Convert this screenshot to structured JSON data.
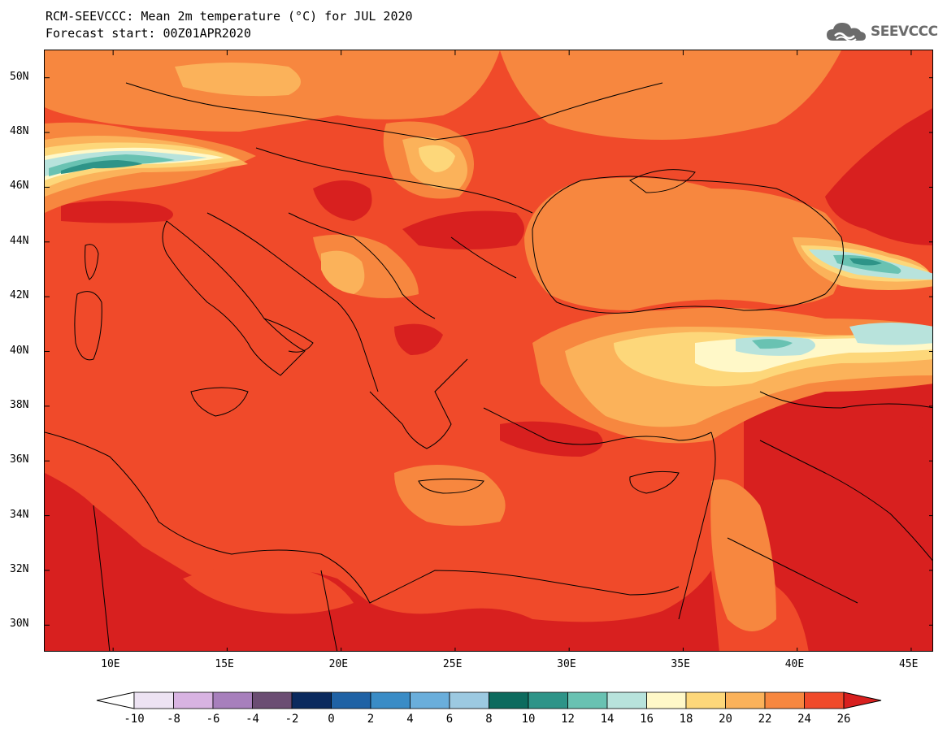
{
  "header": {
    "title": "RCM-SEEVCCC: Mean 2m temperature (°C) for JUL 2020",
    "subtitle": "Forecast start: 00Z01APR2020"
  },
  "logo": {
    "text": "SEEVCCC",
    "icon": "cloud-icon",
    "color": "#6b6b6b"
  },
  "map": {
    "lat_range": [
      29,
      51
    ],
    "lon_range": [
      7,
      46
    ],
    "lat_ticks": [
      "50N",
      "48N",
      "46N",
      "44N",
      "42N",
      "40N",
      "38N",
      "36N",
      "34N",
      "32N",
      "30N"
    ],
    "lon_ticks": [
      "10E",
      "15E",
      "20E",
      "25E",
      "30E",
      "35E",
      "40E",
      "45E"
    ]
  },
  "colorbar": {
    "labels": [
      "-10",
      "-8",
      "-6",
      "-4",
      "-2",
      "0",
      "2",
      "4",
      "6",
      "8",
      "10",
      "12",
      "14",
      "16",
      "18",
      "20",
      "22",
      "24",
      "26"
    ],
    "colors": [
      "#ffffff",
      "#ede3f3",
      "#d8b3e2",
      "#a77fbc",
      "#6b4d73",
      "#0b2a5e",
      "#1f62a5",
      "#3a8cc6",
      "#6aaedb",
      "#9cc9e1",
      "#0d6b5e",
      "#2e9488",
      "#69c2b2",
      "#b8e3dc",
      "#fff8c8",
      "#fdd77a",
      "#fbb25a",
      "#f7873f",
      "#f04a2a",
      "#d8201f"
    ],
    "palette": {
      "c26plus": "#d8201f",
      "c24": "#f04a2a",
      "c22": "#f7873f",
      "c20": "#fbb25a",
      "c18": "#fdd77a",
      "c16": "#fff8c8",
      "c14": "#b8e3dc",
      "c12": "#69c2b2",
      "c10": "#2e9488"
    }
  }
}
